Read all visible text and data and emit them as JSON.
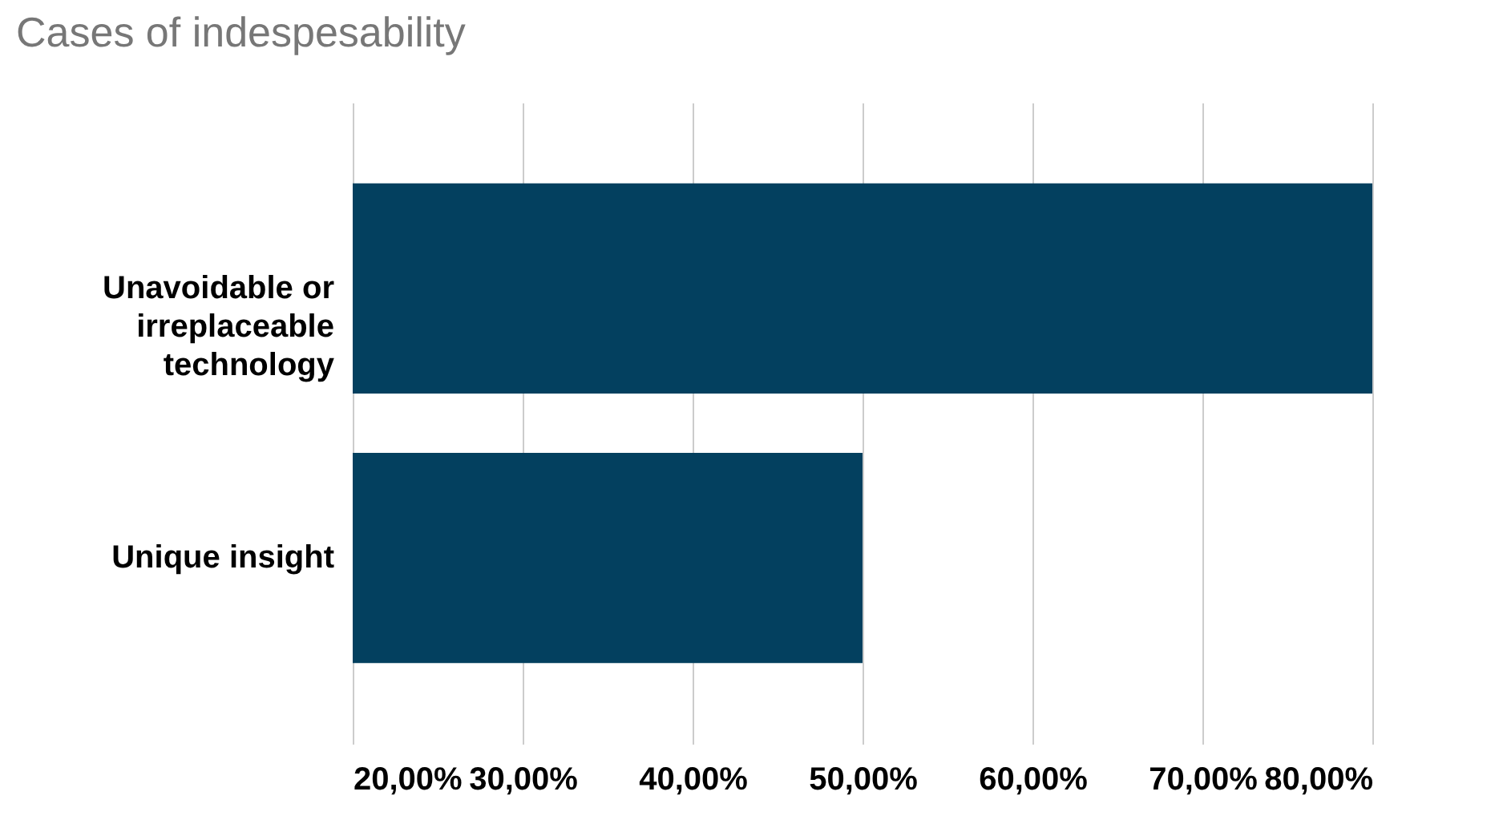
{
  "chart_data": {
    "type": "bar",
    "title": "Cases of indespesability",
    "orientation": "horizontal",
    "categories": [
      "Unavoidable or irreplaceable technology",
      "Unique insight"
    ],
    "values": [
      80,
      50
    ],
    "color": "#03405f",
    "xlim": [
      20,
      80
    ],
    "xticks": [
      {
        "value": 20,
        "label": "20,00%"
      },
      {
        "value": 30,
        "label": "30,00%"
      },
      {
        "value": 40,
        "label": "40,00%"
      },
      {
        "value": 50,
        "label": "50,00%"
      },
      {
        "value": 60,
        "label": "60,00%"
      },
      {
        "value": 70,
        "label": "70,00%"
      },
      {
        "value": 80,
        "label": "80,00%"
      }
    ],
    "grid": "x"
  }
}
